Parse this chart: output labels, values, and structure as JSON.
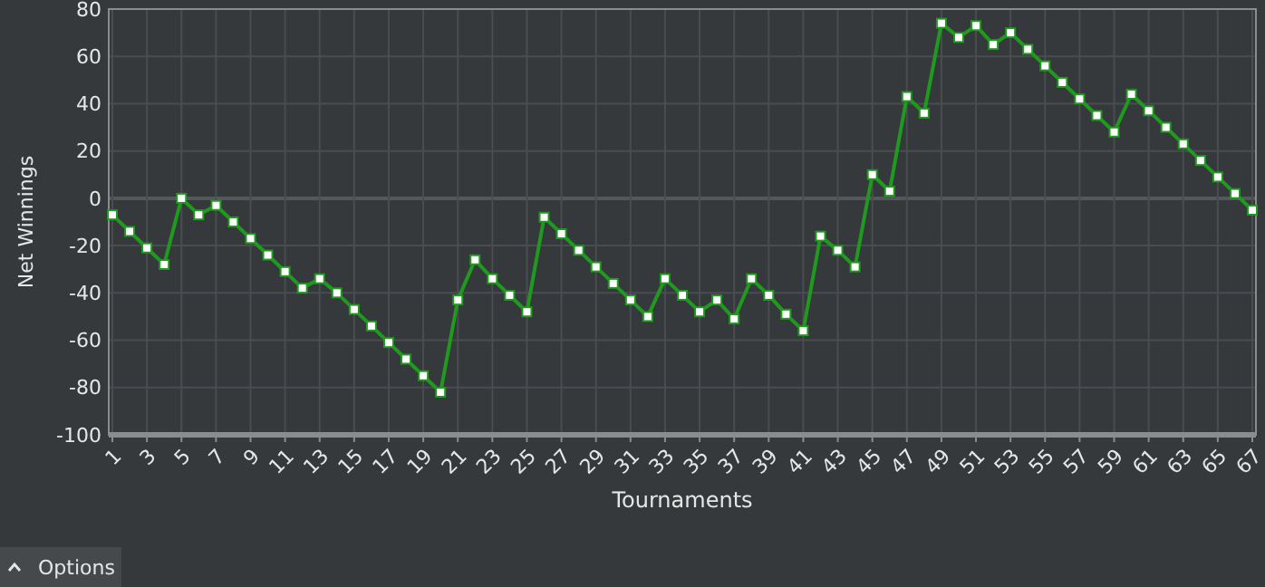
{
  "chart_data": {
    "type": "line",
    "xlabel": "Tournaments",
    "ylabel": "Net Winnings",
    "x": [
      1,
      2,
      3,
      4,
      5,
      6,
      7,
      8,
      9,
      10,
      11,
      12,
      13,
      14,
      15,
      16,
      17,
      18,
      19,
      20,
      21,
      22,
      23,
      24,
      25,
      26,
      27,
      28,
      29,
      30,
      31,
      32,
      33,
      34,
      35,
      36,
      37,
      38,
      39,
      40,
      41,
      42,
      43,
      44,
      45,
      46,
      47,
      48,
      49,
      50,
      51,
      52,
      53,
      54,
      55,
      56,
      57,
      58,
      59,
      60,
      61,
      62,
      63,
      64,
      65,
      66,
      67
    ],
    "series": [
      {
        "color": "#1f9a1f",
        "values": [
          -7,
          -14,
          -21,
          -28,
          0,
          -7,
          -3,
          -10,
          -17,
          -24,
          -31,
          -38,
          -34,
          -40,
          -47,
          -54,
          -61,
          -68,
          -75,
          -82,
          -43,
          -26,
          -34,
          -41,
          -48,
          -8,
          -15,
          -22,
          -29,
          -36,
          -43,
          -50,
          -34,
          -41,
          -48,
          -43,
          -51,
          -34,
          -41,
          -49,
          -56,
          -16,
          -22,
          -29,
          10,
          3,
          43,
          36,
          74,
          68,
          73,
          65,
          70,
          63,
          56,
          49,
          42,
          35,
          28,
          44,
          37,
          30,
          23,
          16,
          9,
          2,
          -5
        ]
      }
    ],
    "xlim": [
      1,
      67
    ],
    "xticks": [
      1,
      3,
      5,
      7,
      9,
      11,
      13,
      15,
      17,
      19,
      21,
      23,
      25,
      27,
      29,
      31,
      33,
      35,
      37,
      39,
      41,
      43,
      45,
      47,
      49,
      51,
      53,
      55,
      57,
      59,
      61,
      63,
      65,
      67
    ],
    "ylim": [
      -100,
      80
    ],
    "yticks": [
      -100,
      -80,
      -60,
      -40,
      -20,
      0,
      20,
      40,
      60,
      80
    ],
    "grid": true,
    "marker": "square",
    "line_style": "solid",
    "annotations": [
      "Options"
    ]
  }
}
